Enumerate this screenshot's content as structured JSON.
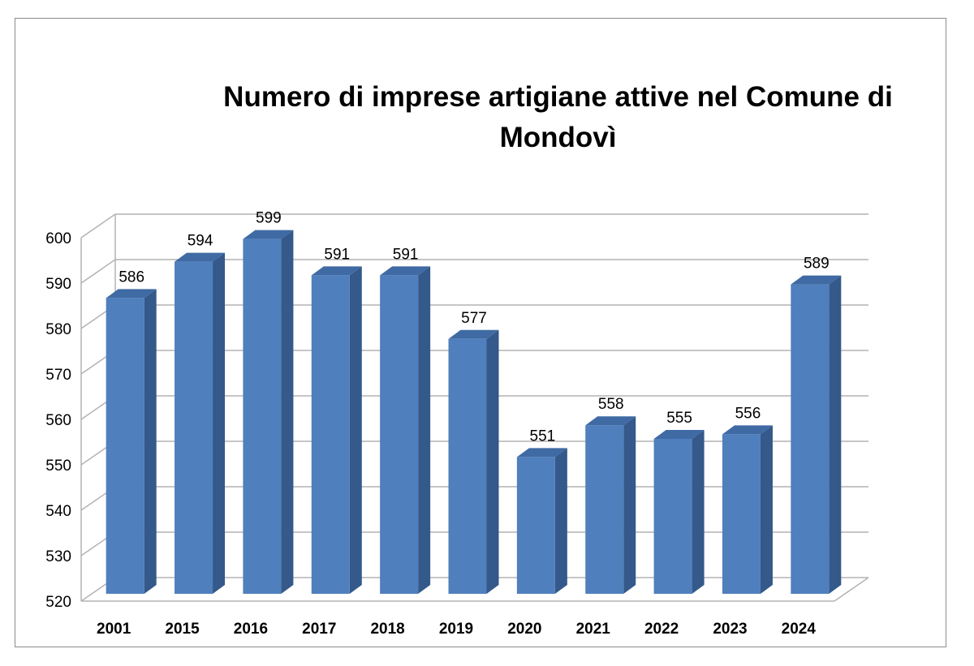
{
  "chart_data": {
    "type": "bar",
    "title": "Numero di imprese artigiane attive nel Comune di Mondovì",
    "xlabel": "",
    "ylabel": "",
    "categories": [
      "2001",
      "2015",
      "2016",
      "2017",
      "2018",
      "2019",
      "2020",
      "2021",
      "2022",
      "2023",
      "2024"
    ],
    "values": [
      586,
      594,
      599,
      591,
      591,
      577,
      551,
      558,
      555,
      556,
      589
    ],
    "data_labels": [
      "586",
      "594",
      "599",
      "591",
      "591",
      "577",
      "551",
      "558",
      "555",
      "556",
      "589"
    ],
    "ylim": [
      520,
      600
    ],
    "yticks": [
      "520",
      "530",
      "540",
      "550",
      "560",
      "570",
      "580",
      "590",
      "600"
    ],
    "grid": true,
    "legend": "none",
    "three_d": true,
    "colors": {
      "bar_front": "#4f7fbd",
      "bar_side": "#34598a",
      "bar_top": "#3f6aa3",
      "grid": "#b3b3b3"
    }
  }
}
